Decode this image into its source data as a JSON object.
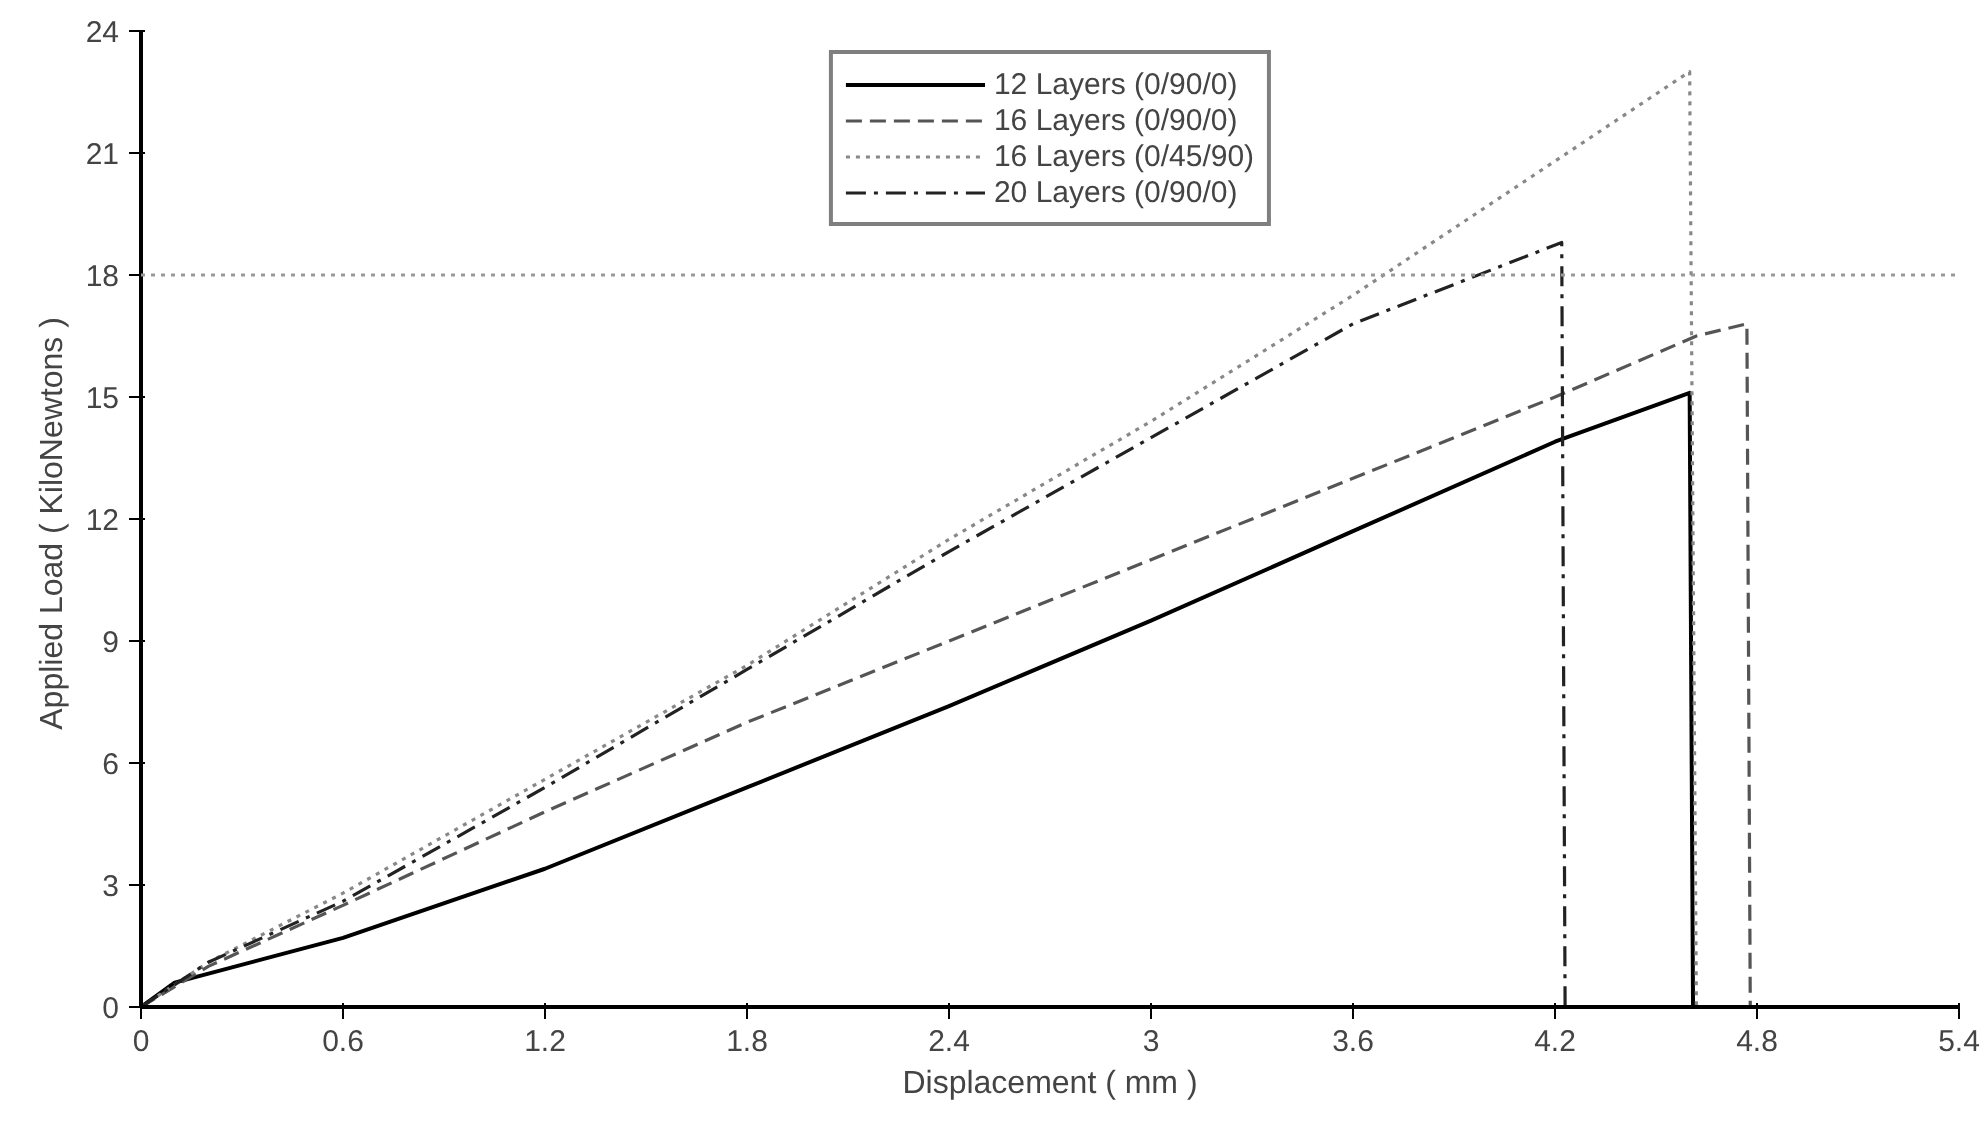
{
  "chart_data": {
    "type": "line",
    "xlabel": "Displacement ( mm )",
    "ylabel": "Applied Load  ( KiloNewtons )",
    "xlim": [
      0,
      5.4
    ],
    "ylim": [
      0,
      24
    ],
    "xticks": [
      0,
      0.6,
      1.2,
      1.8,
      2.4,
      3,
      3.6,
      4.2,
      4.8,
      5.4
    ],
    "yticks": [
      0,
      3,
      6,
      9,
      12,
      15,
      18,
      21,
      24
    ],
    "grid": false,
    "legend": "top",
    "marker": "none",
    "ref_lines": [
      {
        "axis": "y",
        "value": 18,
        "label": null,
        "color": "#999999",
        "line_style": "dotted"
      }
    ],
    "series": [
      {
        "name": "12 Layers (0/90/0)",
        "color": "#000000",
        "line_style": "solid",
        "x": [
          0,
          0.1,
          0.6,
          1.2,
          1.8,
          2.4,
          3,
          3.6,
          4.2,
          4.6,
          4.61
        ],
        "values": [
          0,
          0.6,
          1.7,
          3.4,
          5.4,
          7.4,
          9.5,
          11.7,
          13.9,
          15.1,
          0
        ]
      },
      {
        "name": "16 Layers (0/90/0)",
        "color": "#555555",
        "line_style": "dashed",
        "x": [
          0,
          0.2,
          0.6,
          1.2,
          1.8,
          2.4,
          3,
          3.6,
          4.2,
          4.62,
          4.77,
          4.78
        ],
        "values": [
          0,
          1,
          2.5,
          4.8,
          7,
          9,
          11,
          13,
          15,
          16.5,
          16.8,
          0
        ]
      },
      {
        "name": "16 Layers (0/45/90)",
        "color": "#888888",
        "line_style": "dotted",
        "x": [
          0,
          0.2,
          0.6,
          1.2,
          1.8,
          2.4,
          3,
          3.6,
          4.2,
          4.6,
          4.62
        ],
        "values": [
          0,
          1.1,
          2.8,
          5.6,
          8.4,
          11.5,
          14.4,
          17.5,
          20.8,
          23,
          0
        ]
      },
      {
        "name": "20 Layers (0/90/0)",
        "color": "#222222",
        "line_style": "dashdot",
        "x": [
          0,
          0.2,
          0.6,
          1.2,
          1.8,
          2.4,
          3,
          3.6,
          4.22,
          4.23
        ],
        "values": [
          0,
          1.1,
          2.6,
          5.4,
          8.3,
          11.2,
          14,
          16.8,
          18.8,
          0
        ]
      }
    ]
  }
}
